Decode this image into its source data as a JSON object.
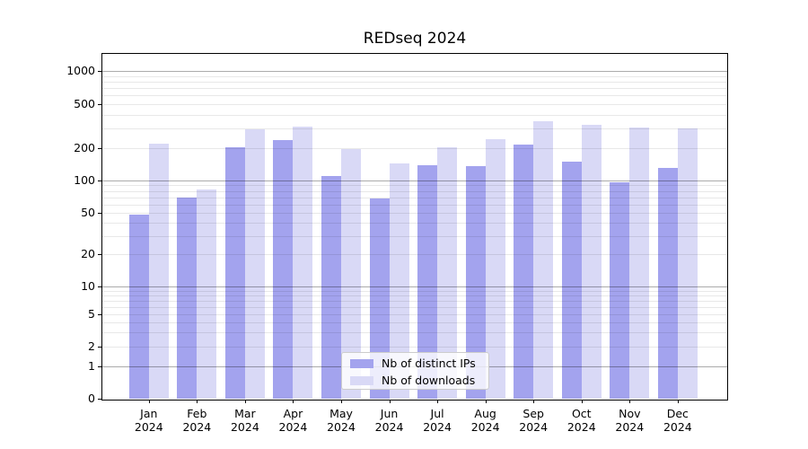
{
  "title": "REDseq 2024",
  "chart_data": {
    "type": "bar",
    "title": "REDseq 2024",
    "categories": [
      "Jan 2024",
      "Feb 2024",
      "Mar 2024",
      "Apr 2024",
      "May 2024",
      "Jun 2024",
      "Jul 2024",
      "Aug 2024",
      "Sep 2024",
      "Oct 2024",
      "Nov 2024",
      "Dec 2024"
    ],
    "x_tick_top": [
      "Jan",
      "Feb",
      "Mar",
      "Apr",
      "May",
      "Jun",
      "Jul",
      "Aug",
      "Sep",
      "Oct",
      "Nov",
      "Dec"
    ],
    "x_tick_bottom": "2024",
    "series": [
      {
        "name": "Nb of distinct IPs",
        "color": "#a3a3ee",
        "values": [
          48,
          70,
          203,
          235,
          111,
          68,
          140,
          135,
          214,
          150,
          97,
          130
        ]
      },
      {
        "name": "Nb of downloads",
        "color": "#d9d9f6",
        "values": [
          220,
          82,
          295,
          315,
          198,
          145,
          204,
          240,
          350,
          325,
          305,
          300
        ]
      }
    ],
    "yscale": "pseudo-log",
    "ylim": [
      0,
      1450
    ],
    "yticks": [
      0,
      1,
      2,
      5,
      10,
      20,
      50,
      100,
      200,
      500,
      1000
    ],
    "minor_gridlines": [
      2,
      3,
      4,
      5,
      6,
      7,
      8,
      9,
      20,
      30,
      40,
      50,
      60,
      70,
      80,
      90,
      200,
      300,
      400,
      500,
      600,
      700,
      800,
      900
    ],
    "major_gridlines": [
      1,
      10,
      100,
      1000
    ],
    "grid": true,
    "legend_position": "bottom-center"
  },
  "legend": {
    "items": [
      {
        "label": "Nb of distinct IPs",
        "color": "#a3a3ee"
      },
      {
        "label": "Nb of downloads",
        "color": "#d9d9f6"
      }
    ]
  },
  "colors": {
    "bar_distinct_ips": "#a3a3ee",
    "bar_downloads": "#d9d9f6",
    "axis": "#000000",
    "background": "#ffffff"
  }
}
